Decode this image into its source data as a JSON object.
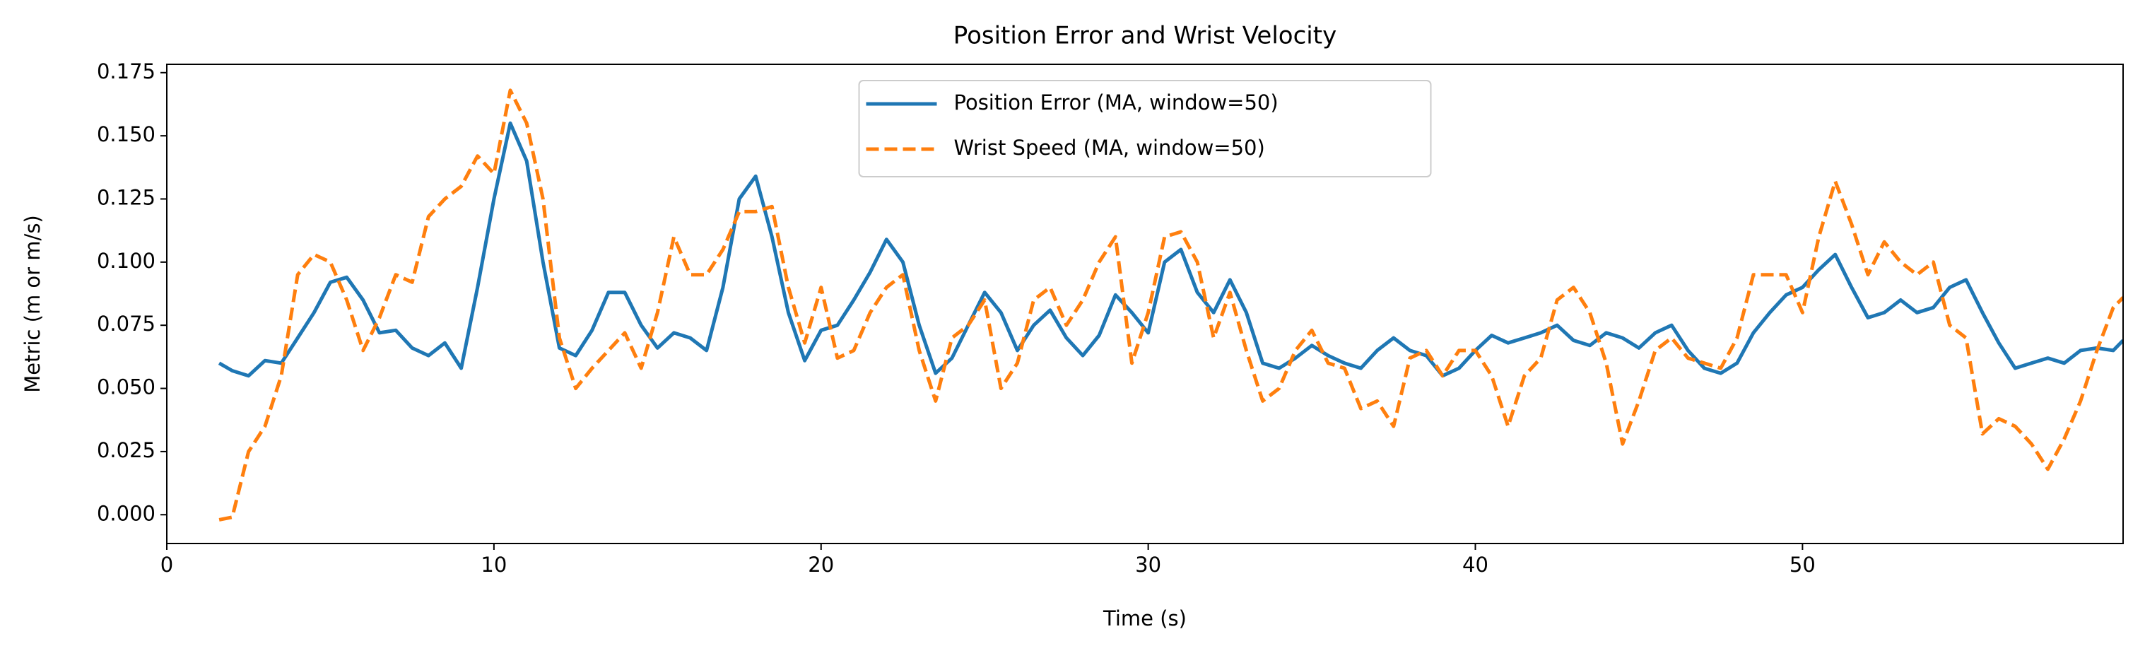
{
  "chart_data": {
    "type": "line",
    "title": "Position Error and Wrist Velocity",
    "xlabel": "Time (s)",
    "ylabel": "Metric (m or m/s)",
    "x": [
      1.6,
      2.0,
      2.5,
      3.0,
      3.5,
      4.0,
      4.5,
      5.0,
      5.5,
      6.0,
      6.5,
      7.0,
      7.5,
      8.0,
      8.5,
      9.0,
      9.5,
      10.0,
      10.5,
      11.0,
      11.5,
      12.0,
      12.5,
      13.0,
      13.5,
      14.0,
      14.5,
      15.0,
      15.5,
      16.0,
      16.5,
      17.0,
      17.5,
      18.0,
      18.5,
      19.0,
      19.5,
      20.0,
      20.5,
      21.0,
      21.5,
      22.0,
      22.5,
      23.0,
      23.5,
      24.0,
      24.5,
      25.0,
      25.5,
      26.0,
      26.5,
      27.0,
      27.5,
      28.0,
      28.5,
      29.0,
      29.5,
      30.0,
      30.5,
      31.0,
      31.5,
      32.0,
      32.5,
      33.0,
      33.5,
      34.0,
      34.5,
      35.0,
      35.5,
      36.0,
      36.5,
      37.0,
      37.5,
      38.0,
      38.5,
      39.0,
      39.5,
      40.0,
      40.5,
      41.0,
      41.5,
      42.0,
      42.5,
      43.0,
      43.5,
      44.0,
      44.5,
      45.0,
      45.5,
      46.0,
      46.5,
      47.0,
      47.5,
      48.0,
      48.5,
      49.0,
      49.5,
      50.0,
      50.5,
      51.0,
      51.5,
      52.0,
      52.5,
      53.0,
      53.5,
      54.0,
      54.5,
      55.0,
      55.5,
      56.0,
      56.5,
      57.0,
      57.5,
      58.0,
      58.5,
      59.0,
      59.5,
      59.8
    ],
    "series": [
      {
        "name": "Position Error (MA, window=50)",
        "color": "#1f77b4",
        "dash": "solid",
        "values": [
          0.06,
          0.057,
          0.055,
          0.061,
          0.06,
          0.07,
          0.08,
          0.092,
          0.094,
          0.085,
          0.072,
          0.073,
          0.066,
          0.063,
          0.068,
          0.058,
          0.09,
          0.125,
          0.155,
          0.14,
          0.1,
          0.066,
          0.063,
          0.073,
          0.088,
          0.088,
          0.075,
          0.066,
          0.072,
          0.07,
          0.065,
          0.09,
          0.125,
          0.134,
          0.11,
          0.08,
          0.061,
          0.073,
          0.075,
          0.085,
          0.096,
          0.109,
          0.1,
          0.075,
          0.056,
          0.062,
          0.075,
          0.088,
          0.08,
          0.065,
          0.075,
          0.081,
          0.07,
          0.063,
          0.071,
          0.087,
          0.08,
          0.072,
          0.1,
          0.105,
          0.088,
          0.08,
          0.093,
          0.08,
          0.06,
          0.058,
          0.062,
          0.067,
          0.063,
          0.06,
          0.058,
          0.065,
          0.07,
          0.065,
          0.063,
          0.055,
          0.058,
          0.065,
          0.071,
          0.068,
          0.07,
          0.072,
          0.075,
          0.069,
          0.067,
          0.072,
          0.07,
          0.066,
          0.072,
          0.075,
          0.065,
          0.058,
          0.056,
          0.06,
          0.072,
          0.08,
          0.087,
          0.09,
          0.097,
          0.103,
          0.09,
          0.078,
          0.08,
          0.085,
          0.08,
          0.082,
          0.09,
          0.093,
          0.08,
          0.068,
          0.058,
          0.06,
          0.062,
          0.06,
          0.065,
          0.066,
          0.065,
          0.069
        ]
      },
      {
        "name": "Wrist Speed (MA, window=50)",
        "color": "#ff7f0e",
        "dash": "dashed",
        "values": [
          -0.002,
          -0.001,
          0.025,
          0.035,
          0.055,
          0.095,
          0.103,
          0.1,
          0.085,
          0.065,
          0.078,
          0.095,
          0.092,
          0.118,
          0.125,
          0.13,
          0.142,
          0.135,
          0.168,
          0.155,
          0.125,
          0.07,
          0.05,
          0.058,
          0.065,
          0.072,
          0.058,
          0.08,
          0.11,
          0.095,
          0.095,
          0.105,
          0.12,
          0.12,
          0.122,
          0.09,
          0.068,
          0.09,
          0.062,
          0.065,
          0.08,
          0.09,
          0.095,
          0.065,
          0.045,
          0.07,
          0.075,
          0.085,
          0.05,
          0.06,
          0.085,
          0.09,
          0.075,
          0.085,
          0.1,
          0.11,
          0.06,
          0.08,
          0.11,
          0.112,
          0.1,
          0.07,
          0.088,
          0.065,
          0.045,
          0.05,
          0.065,
          0.073,
          0.06,
          0.058,
          0.042,
          0.045,
          0.035,
          0.062,
          0.065,
          0.055,
          0.065,
          0.065,
          0.055,
          0.035,
          0.055,
          0.062,
          0.085,
          0.09,
          0.08,
          0.06,
          0.028,
          0.045,
          0.065,
          0.07,
          0.062,
          0.06,
          0.058,
          0.07,
          0.095,
          0.095,
          0.095,
          0.08,
          0.11,
          0.132,
          0.115,
          0.095,
          0.108,
          0.1,
          0.095,
          0.1,
          0.075,
          0.07,
          0.032,
          0.038,
          0.035,
          0.028,
          0.018,
          0.03,
          0.045,
          0.065,
          0.082,
          0.086
        ]
      }
    ],
    "xlim": [
      0,
      59.8
    ],
    "xticks": [
      0,
      10,
      20,
      30,
      40,
      50
    ],
    "ylim": [
      -0.0114,
      0.1783
    ],
    "yticks": [
      {
        "value": 0,
        "label": "0.000"
      },
      {
        "value": 0.025,
        "label": "0.025"
      },
      {
        "value": 0.05,
        "label": "0.050"
      },
      {
        "value": 0.075,
        "label": "0.075"
      },
      {
        "value": 0.1,
        "label": "0.100"
      },
      {
        "value": 0.125,
        "label": "0.125"
      },
      {
        "value": 0.15,
        "label": "0.150"
      },
      {
        "value": 0.175,
        "label": "0.175"
      }
    ],
    "legend": "upper center",
    "grid": false
  }
}
